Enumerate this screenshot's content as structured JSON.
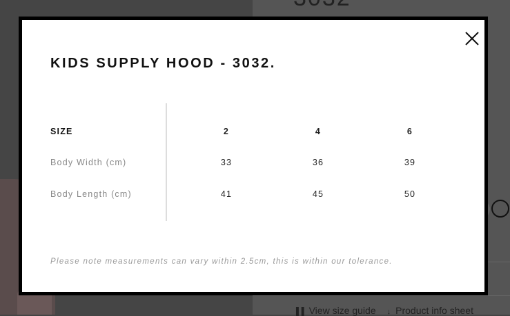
{
  "background": {
    "product_code_partial": "3032"
  },
  "product_actions": {
    "size_guide": {
      "icon": "ruler-icon",
      "label": "View size guide"
    },
    "info_sheet": {
      "icon": "download-arrow-icon",
      "label": "Product info sheet"
    }
  },
  "modal": {
    "title": "KIDS SUPPLY HOOD - 3032.",
    "close_icon": "close-icon",
    "table": {
      "header": {
        "label": "SIZE",
        "sizes": [
          "2",
          "4",
          "6"
        ]
      },
      "rows": [
        {
          "label": "Body Width (cm)",
          "values": [
            "33",
            "36",
            "39"
          ]
        },
        {
          "label": "Body Length (cm)",
          "values": [
            "41",
            "45",
            "50"
          ]
        }
      ]
    },
    "note": "Please note measurements can vary within 2.5cm, this is within our tolerance."
  }
}
